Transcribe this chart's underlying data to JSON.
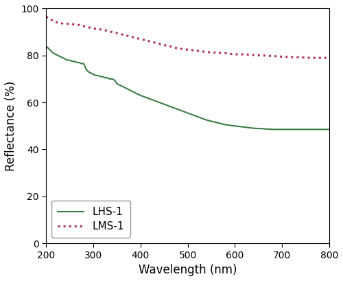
{
  "title": "",
  "xlabel": "Wavelength (nm)",
  "ylabel": "Reflectance (%)",
  "xlim": [
    200,
    800
  ],
  "ylim": [
    0,
    100
  ],
  "xticks": [
    200,
    300,
    400,
    500,
    600,
    700,
    800
  ],
  "yticks": [
    0,
    20,
    40,
    60,
    80,
    100
  ],
  "lhs1_color": "#3a7d44",
  "lms1_color": "#b03060",
  "lhs1_label": "LHS-1",
  "lms1_label": "LMS-1",
  "lhs1_x": [
    200,
    205,
    210,
    215,
    220,
    225,
    230,
    235,
    240,
    245,
    250,
    255,
    260,
    265,
    270,
    275,
    280,
    285,
    290,
    295,
    300,
    305,
    310,
    315,
    320,
    325,
    330,
    335,
    340,
    345,
    350,
    360,
    370,
    380,
    390,
    400,
    420,
    440,
    460,
    480,
    500,
    520,
    540,
    560,
    580,
    600,
    620,
    640,
    660,
    680,
    700,
    720,
    740,
    760,
    780,
    800
  ],
  "lhs1_y": [
    84,
    83,
    82,
    81,
    80.5,
    80,
    79.5,
    79,
    78.5,
    78,
    78,
    77.5,
    77.5,
    77,
    77,
    76.5,
    76.5,
    74,
    73,
    72.5,
    72,
    71.5,
    71.5,
    71,
    71,
    70.5,
    70.5,
    70,
    70,
    69.5,
    68,
    67,
    66,
    65,
    64,
    63,
    61.5,
    60,
    58.5,
    57,
    55.5,
    54,
    52.5,
    51.5,
    50.5,
    50,
    49.5,
    49,
    48.8,
    48.5,
    48.5,
    48.5,
    48.5,
    48.5,
    48.5,
    48.5
  ],
  "lms1_x": [
    200,
    210,
    215,
    220,
    230,
    240,
    250,
    260,
    270,
    280,
    290,
    300,
    320,
    340,
    360,
    380,
    400,
    420,
    440,
    460,
    480,
    500,
    520,
    540,
    560,
    580,
    600,
    620,
    640,
    660,
    680,
    700,
    720,
    740,
    760,
    780,
    800
  ],
  "lms1_y": [
    96.5,
    95.5,
    94.5,
    94.2,
    93.8,
    93.5,
    93.5,
    93.2,
    93.0,
    92.5,
    92.0,
    91.5,
    91.0,
    90.0,
    89.0,
    88.0,
    87.0,
    86.0,
    85.0,
    84.0,
    83.0,
    82.5,
    82.0,
    81.5,
    81.2,
    81.0,
    80.5,
    80.5,
    80.2,
    80.0,
    79.8,
    79.5,
    79.3,
    79.2,
    79.0,
    79.0,
    79.0
  ],
  "legend_loc": "lower left",
  "figsize": [
    5.0,
    4.09
  ],
  "dpi": 100,
  "tick_fontsize": 10,
  "label_fontsize": 12,
  "legend_fontsize": 11
}
